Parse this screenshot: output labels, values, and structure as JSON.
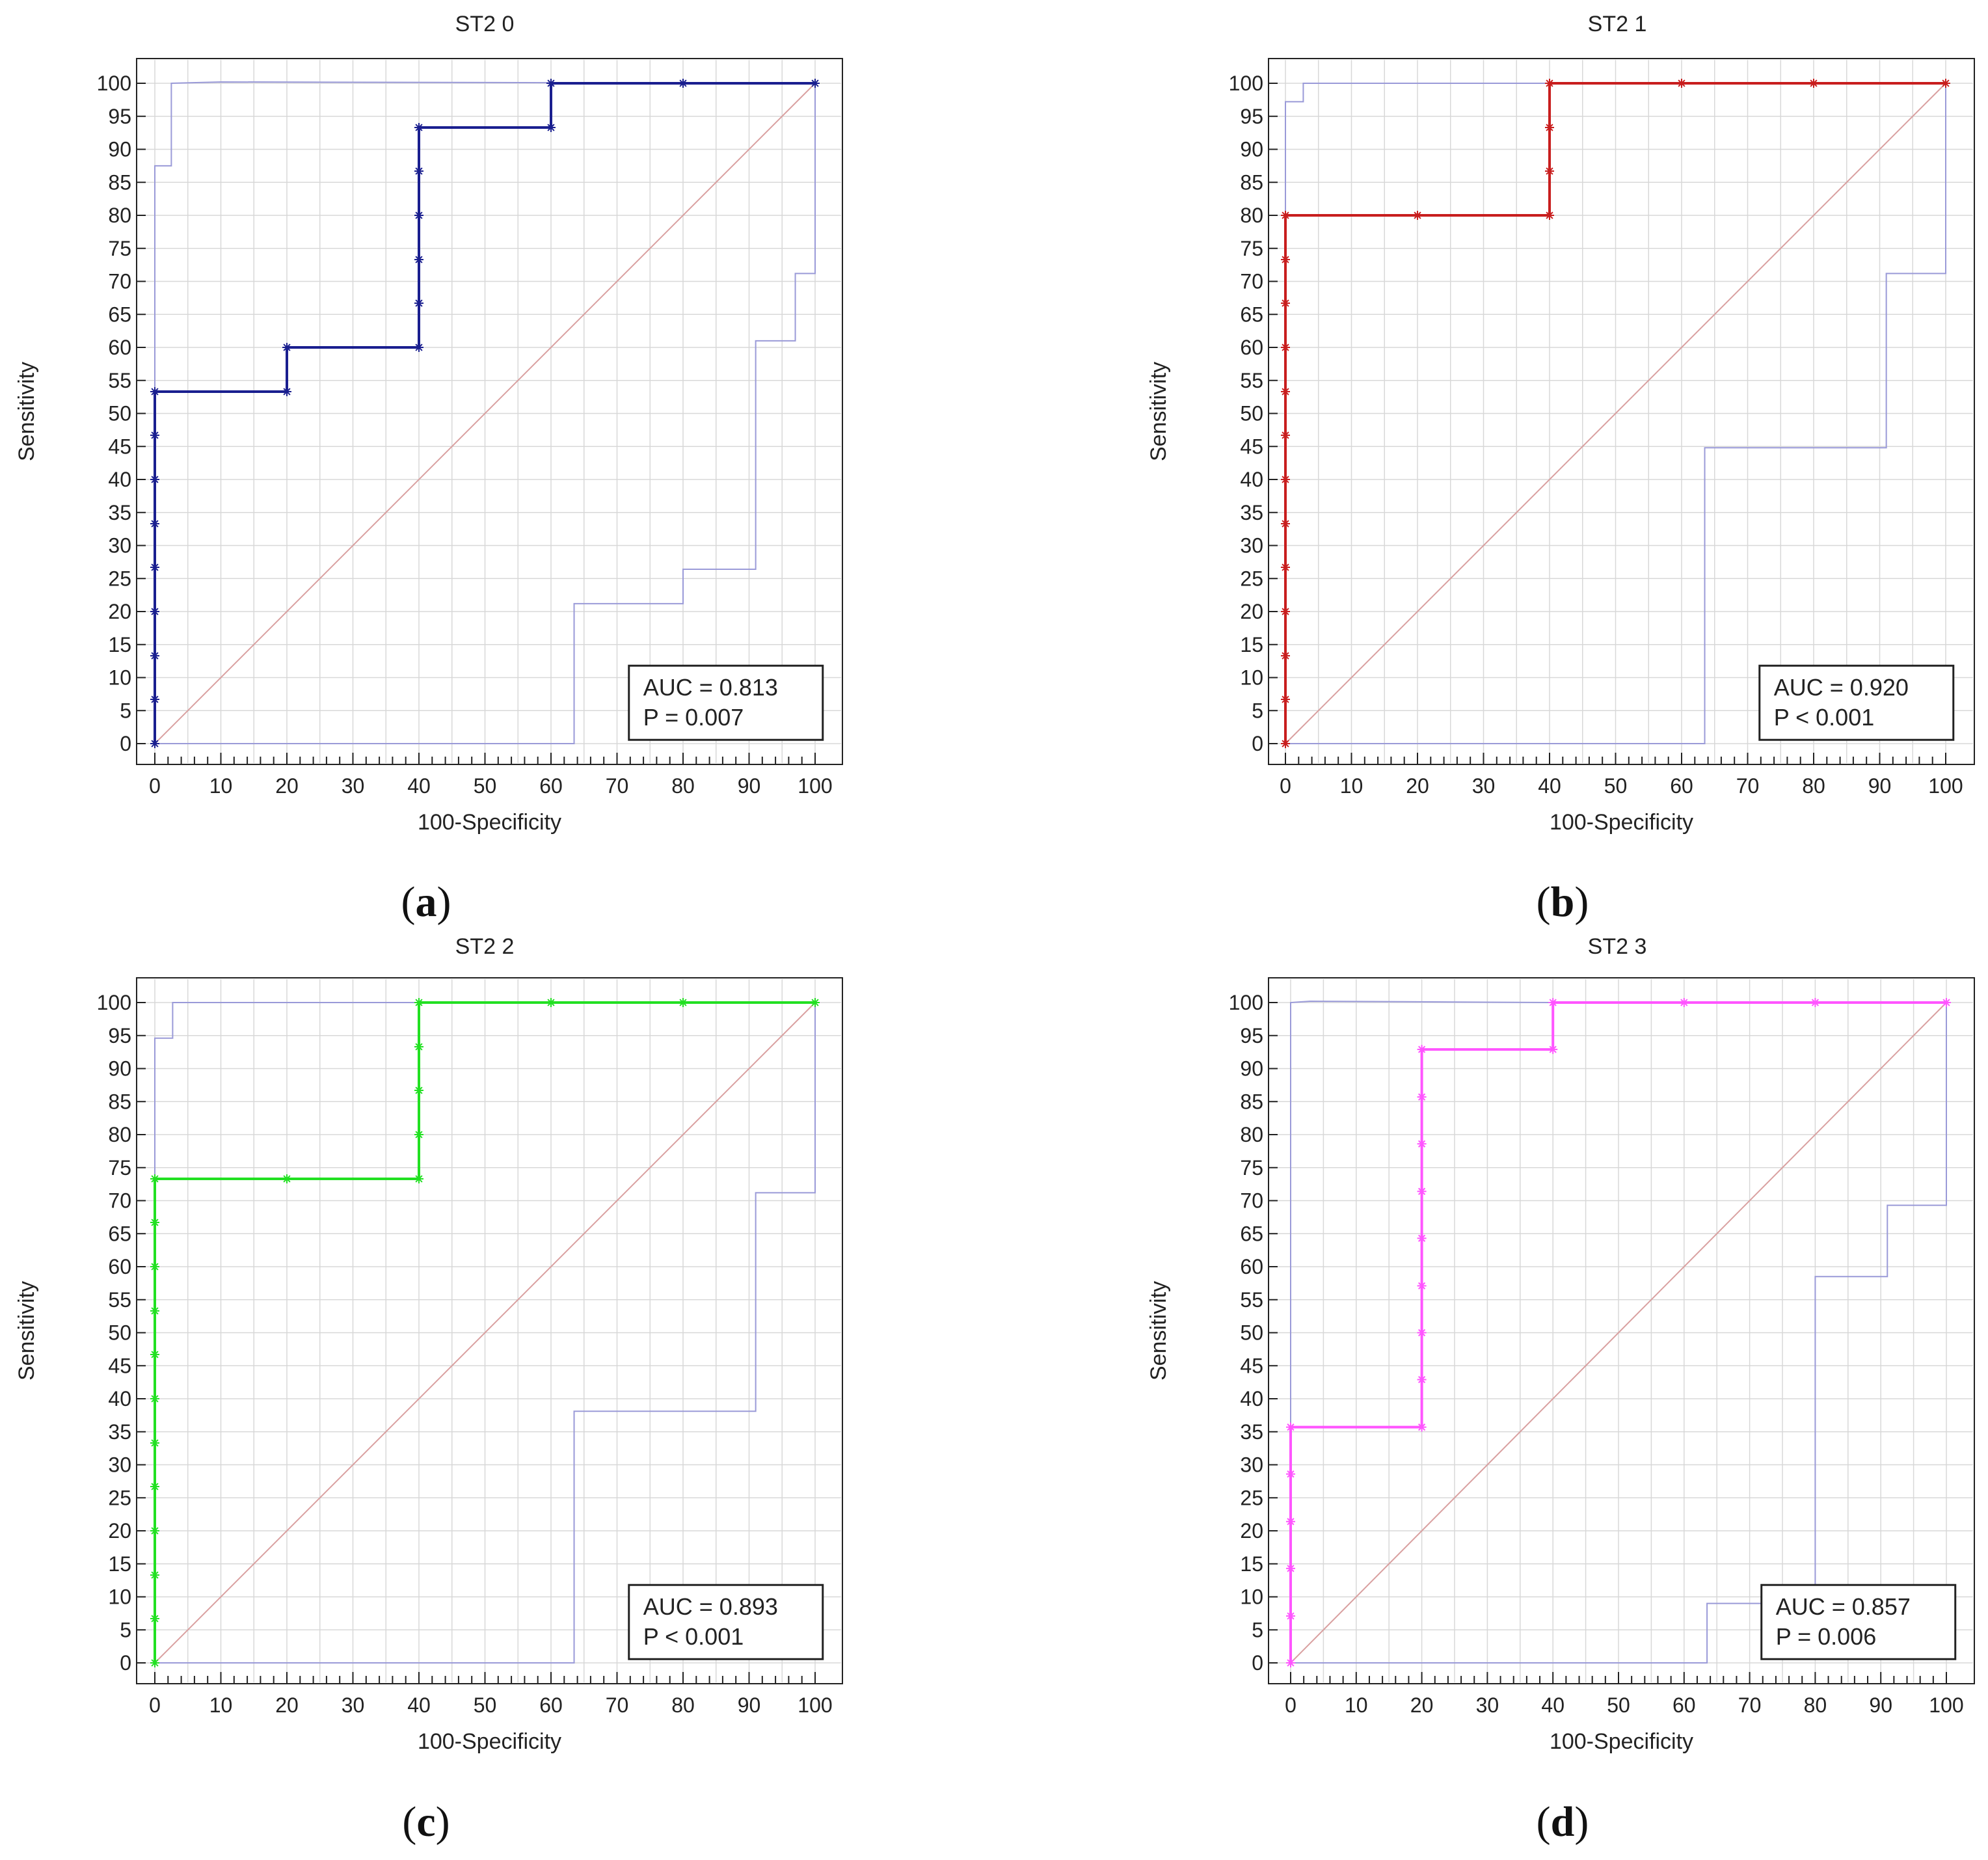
{
  "figure": {
    "panels": [
      "a",
      "b",
      "c",
      "d"
    ]
  },
  "chart_data": [
    {
      "id": "a",
      "type": "line",
      "title": "ST2 0",
      "xlabel": "100-Specificity",
      "ylabel": "Sensitivity",
      "caption_letter": "a",
      "xlim": [
        0,
        100
      ],
      "ylim": [
        0,
        100
      ],
      "xticks": [
        0,
        10,
        20,
        30,
        40,
        50,
        60,
        70,
        80,
        90,
        100
      ],
      "yticks": [
        0,
        5,
        10,
        15,
        20,
        25,
        30,
        35,
        40,
        45,
        50,
        55,
        60,
        65,
        70,
        75,
        80,
        85,
        90,
        95,
        100
      ],
      "grid": true,
      "color": "#1a1f8f",
      "auc_label": "AUC = 0.813",
      "p_label": "P = 0.007",
      "roc_x": [
        0,
        0,
        20,
        20,
        40,
        40,
        60,
        60,
        100
      ],
      "roc_y": [
        0,
        53.3,
        53.3,
        60,
        60,
        93.3,
        93.3,
        100,
        100
      ],
      "markers": [
        [
          0,
          0
        ],
        [
          0,
          6.7
        ],
        [
          0,
          13.3
        ],
        [
          0,
          20
        ],
        [
          0,
          26.7
        ],
        [
          0,
          33.3
        ],
        [
          0,
          40
        ],
        [
          0,
          46.7
        ],
        [
          0,
          53.3
        ],
        [
          20,
          53.3
        ],
        [
          20,
          60
        ],
        [
          40,
          60
        ],
        [
          40,
          66.7
        ],
        [
          40,
          73.3
        ],
        [
          40,
          80
        ],
        [
          40,
          86.7
        ],
        [
          40,
          93.3
        ],
        [
          60,
          93.3
        ],
        [
          60,
          100
        ],
        [
          80,
          100
        ],
        [
          100,
          100
        ]
      ],
      "ci_upper_x": [
        0,
        0,
        2.5,
        2.5,
        10,
        100
      ],
      "ci_upper_y": [
        0,
        87.5,
        87.5,
        100,
        100.2,
        100
      ],
      "ci_lower_x": [
        0,
        63.5,
        63.5,
        80,
        80,
        91,
        91,
        97,
        97,
        100,
        100
      ],
      "ci_lower_y": [
        0,
        0,
        21.2,
        21.2,
        26.4,
        26.4,
        61,
        61,
        71.2,
        71.2,
        100
      ]
    },
    {
      "id": "b",
      "type": "line",
      "title": "ST2 1",
      "xlabel": "100-Specificity",
      "ylabel": "Sensitivity",
      "caption_letter": "b",
      "xlim": [
        0,
        100
      ],
      "ylim": [
        0,
        100
      ],
      "xticks": [
        0,
        10,
        20,
        30,
        40,
        50,
        60,
        70,
        80,
        90,
        100
      ],
      "yticks": [
        0,
        5,
        10,
        15,
        20,
        25,
        30,
        35,
        40,
        45,
        50,
        55,
        60,
        65,
        70,
        75,
        80,
        85,
        90,
        95,
        100
      ],
      "grid": true,
      "color": "#c81e1e",
      "auc_label": "AUC = 0.920",
      "p_label": "P < 0.001",
      "roc_x": [
        0,
        0,
        40,
        40,
        100
      ],
      "roc_y": [
        0,
        80,
        80,
        100,
        100
      ],
      "markers": [
        [
          0,
          0
        ],
        [
          0,
          6.7
        ],
        [
          0,
          13.3
        ],
        [
          0,
          20
        ],
        [
          0,
          26.7
        ],
        [
          0,
          33.3
        ],
        [
          0,
          40
        ],
        [
          0,
          46.7
        ],
        [
          0,
          53.3
        ],
        [
          0,
          60
        ],
        [
          0,
          66.7
        ],
        [
          0,
          73.3
        ],
        [
          0,
          80
        ],
        [
          20,
          80
        ],
        [
          40,
          80
        ],
        [
          40,
          86.7
        ],
        [
          40,
          93.3
        ],
        [
          40,
          100
        ],
        [
          60,
          100
        ],
        [
          80,
          100
        ],
        [
          100,
          100
        ]
      ],
      "ci_upper_x": [
        0,
        0,
        2.7,
        2.7,
        40
      ],
      "ci_upper_y": [
        0,
        97.2,
        97.2,
        100,
        100
      ],
      "ci_lower_x": [
        0,
        63.5,
        63.5,
        91,
        91,
        100,
        100
      ],
      "ci_lower_y": [
        0,
        0,
        44.8,
        44.8,
        71.2,
        71.2,
        100
      ]
    },
    {
      "id": "c",
      "type": "line",
      "title": "ST2 2",
      "xlabel": "100-Specificity",
      "ylabel": "Sensitivity",
      "caption_letter": "c",
      "xlim": [
        0,
        100
      ],
      "ylim": [
        0,
        100
      ],
      "xticks": [
        0,
        10,
        20,
        30,
        40,
        50,
        60,
        70,
        80,
        90,
        100
      ],
      "yticks": [
        0,
        5,
        10,
        15,
        20,
        25,
        30,
        35,
        40,
        45,
        50,
        55,
        60,
        65,
        70,
        75,
        80,
        85,
        90,
        95,
        100
      ],
      "grid": true,
      "color": "#22e022",
      "auc_label": "AUC = 0.893",
      "p_label": "P < 0.001",
      "roc_x": [
        0,
        0,
        40,
        40,
        100
      ],
      "roc_y": [
        0,
        73.3,
        73.3,
        100,
        100
      ],
      "markers": [
        [
          0,
          0
        ],
        [
          0,
          6.7
        ],
        [
          0,
          13.3
        ],
        [
          0,
          20
        ],
        [
          0,
          26.7
        ],
        [
          0,
          33.3
        ],
        [
          0,
          40
        ],
        [
          0,
          46.7
        ],
        [
          0,
          53.3
        ],
        [
          0,
          60
        ],
        [
          0,
          66.7
        ],
        [
          0,
          73.3
        ],
        [
          20,
          73.3
        ],
        [
          40,
          73.3
        ],
        [
          40,
          80
        ],
        [
          40,
          86.7
        ],
        [
          40,
          93.3
        ],
        [
          40,
          100
        ],
        [
          60,
          100
        ],
        [
          80,
          100
        ],
        [
          100,
          100
        ]
      ],
      "ci_upper_x": [
        0,
        0,
        2.7,
        2.7,
        40
      ],
      "ci_upper_y": [
        0,
        94.6,
        94.6,
        100,
        100
      ],
      "ci_lower_x": [
        0,
        63.5,
        63.5,
        91,
        91,
        100,
        100
      ],
      "ci_lower_y": [
        0,
        0,
        38.1,
        38.1,
        71.2,
        71.2,
        100
      ]
    },
    {
      "id": "d",
      "type": "line",
      "title": "ST2 3",
      "xlabel": "100-Specificity",
      "ylabel": "Sensitivity",
      "caption_letter": "d",
      "xlim": [
        0,
        100
      ],
      "ylim": [
        0,
        100
      ],
      "xticks": [
        0,
        10,
        20,
        30,
        40,
        50,
        60,
        70,
        80,
        90,
        100
      ],
      "yticks": [
        0,
        5,
        10,
        15,
        20,
        25,
        30,
        35,
        40,
        45,
        50,
        55,
        60,
        65,
        70,
        75,
        80,
        85,
        90,
        95,
        100
      ],
      "grid": true,
      "color": "#ff55ff",
      "auc_label": "AUC = 0.857",
      "p_label": "P = 0.006",
      "roc_x": [
        0,
        0,
        20,
        20,
        40,
        40,
        100
      ],
      "roc_y": [
        0,
        35.7,
        35.7,
        92.9,
        92.9,
        100,
        100
      ],
      "markers": [
        [
          0,
          0
        ],
        [
          0,
          7.1
        ],
        [
          0,
          14.3
        ],
        [
          0,
          21.4
        ],
        [
          0,
          28.6
        ],
        [
          0,
          35.7
        ],
        [
          20,
          35.7
        ],
        [
          20,
          42.9
        ],
        [
          20,
          50
        ],
        [
          20,
          57.1
        ],
        [
          20,
          64.3
        ],
        [
          20,
          71.4
        ],
        [
          20,
          78.6
        ],
        [
          20,
          85.7
        ],
        [
          20,
          92.9
        ],
        [
          40,
          92.9
        ],
        [
          40,
          100
        ],
        [
          60,
          100
        ],
        [
          80,
          100
        ],
        [
          100,
          100
        ]
      ],
      "ci_upper_x": [
        0,
        0,
        3,
        40
      ],
      "ci_upper_y": [
        0,
        100,
        100.2,
        100
      ],
      "ci_lower_x": [
        0,
        63.5,
        63.5,
        80,
        80,
        91,
        91,
        100,
        100
      ],
      "ci_lower_y": [
        0,
        0,
        9,
        9,
        58.5,
        58.5,
        69.3,
        69.3,
        100
      ]
    }
  ]
}
